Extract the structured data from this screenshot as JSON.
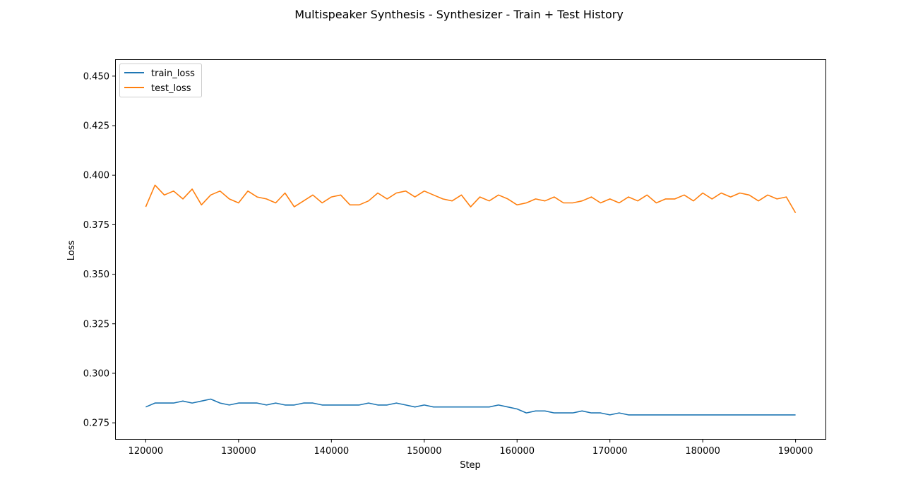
{
  "chart_data": {
    "type": "line",
    "title": "Multispeaker Synthesis - Synthesizer - Train + Test History",
    "xlabel": "Step",
    "ylabel": "Loss",
    "xlim": [
      116700,
      193300
    ],
    "ylim": [
      0.2665,
      0.4585
    ],
    "xticks": [
      120000,
      130000,
      140000,
      150000,
      160000,
      170000,
      180000,
      190000
    ],
    "yticks": [
      0.275,
      0.3,
      0.325,
      0.35,
      0.375,
      0.4,
      0.425,
      0.45
    ],
    "ytick_labels": [
      "0.275",
      "0.300",
      "0.325",
      "0.350",
      "0.375",
      "0.400",
      "0.425",
      "0.450"
    ],
    "grid": false,
    "legend_position": "top-left",
    "series": [
      {
        "name": "train_loss",
        "color": "#1f77b4",
        "x": [
          120000,
          121000,
          122000,
          123000,
          124000,
          125000,
          126000,
          127000,
          128000,
          129000,
          130000,
          131000,
          132000,
          133000,
          134000,
          135000,
          136000,
          137000,
          138000,
          139000,
          140000,
          141000,
          142000,
          143000,
          144000,
          145000,
          146000,
          147000,
          148000,
          149000,
          150000,
          151000,
          152000,
          153000,
          154000,
          155000,
          156000,
          157000,
          158000,
          159000,
          160000,
          161000,
          162000,
          163000,
          164000,
          165000,
          166000,
          167000,
          168000,
          169000,
          170000,
          171000,
          172000,
          173000,
          174000,
          175000,
          176000,
          177000,
          178000,
          179000,
          180000,
          181000,
          182000,
          183000,
          184000,
          185000,
          186000,
          187000,
          188000,
          189000,
          190000
        ],
        "y": [
          0.283,
          0.285,
          0.285,
          0.285,
          0.286,
          0.285,
          0.286,
          0.287,
          0.285,
          0.284,
          0.285,
          0.285,
          0.285,
          0.284,
          0.285,
          0.284,
          0.284,
          0.285,
          0.285,
          0.284,
          0.284,
          0.284,
          0.284,
          0.284,
          0.285,
          0.284,
          0.284,
          0.285,
          0.284,
          0.283,
          0.284,
          0.283,
          0.283,
          0.283,
          0.283,
          0.283,
          0.283,
          0.283,
          0.284,
          0.283,
          0.282,
          0.28,
          0.281,
          0.281,
          0.28,
          0.28,
          0.28,
          0.281,
          0.28,
          0.28,
          0.279,
          0.28,
          0.279,
          0.279,
          0.279,
          0.279,
          0.279,
          0.279,
          0.279,
          0.279,
          0.279,
          0.279,
          0.279,
          0.279,
          0.279,
          0.279,
          0.279,
          0.279,
          0.279,
          0.279,
          0.279
        ]
      },
      {
        "name": "test_loss",
        "color": "#ff7f0e",
        "x": [
          120000,
          121000,
          122000,
          123000,
          124000,
          125000,
          126000,
          127000,
          128000,
          129000,
          130000,
          131000,
          132000,
          133000,
          134000,
          135000,
          136000,
          137000,
          138000,
          139000,
          140000,
          141000,
          142000,
          143000,
          144000,
          145000,
          146000,
          147000,
          148000,
          149000,
          150000,
          151000,
          152000,
          153000,
          154000,
          155000,
          156000,
          157000,
          158000,
          159000,
          160000,
          161000,
          162000,
          163000,
          164000,
          165000,
          166000,
          167000,
          168000,
          169000,
          170000,
          171000,
          172000,
          173000,
          174000,
          175000,
          176000,
          177000,
          178000,
          179000,
          180000,
          181000,
          182000,
          183000,
          184000,
          185000,
          186000,
          187000,
          188000,
          189000,
          190000
        ],
        "y": [
          0.384,
          0.395,
          0.39,
          0.392,
          0.388,
          0.393,
          0.385,
          0.39,
          0.392,
          0.388,
          0.386,
          0.392,
          0.389,
          0.388,
          0.386,
          0.391,
          0.384,
          0.387,
          0.39,
          0.386,
          0.389,
          0.39,
          0.385,
          0.385,
          0.387,
          0.391,
          0.388,
          0.391,
          0.392,
          0.389,
          0.392,
          0.39,
          0.388,
          0.387,
          0.39,
          0.384,
          0.389,
          0.387,
          0.39,
          0.388,
          0.385,
          0.386,
          0.388,
          0.387,
          0.389,
          0.386,
          0.386,
          0.387,
          0.389,
          0.386,
          0.388,
          0.386,
          0.389,
          0.387,
          0.39,
          0.386,
          0.388,
          0.388,
          0.39,
          0.387,
          0.391,
          0.388,
          0.391,
          0.389,
          0.391,
          0.39,
          0.387,
          0.39,
          0.388,
          0.389,
          0.381
        ]
      }
    ]
  }
}
